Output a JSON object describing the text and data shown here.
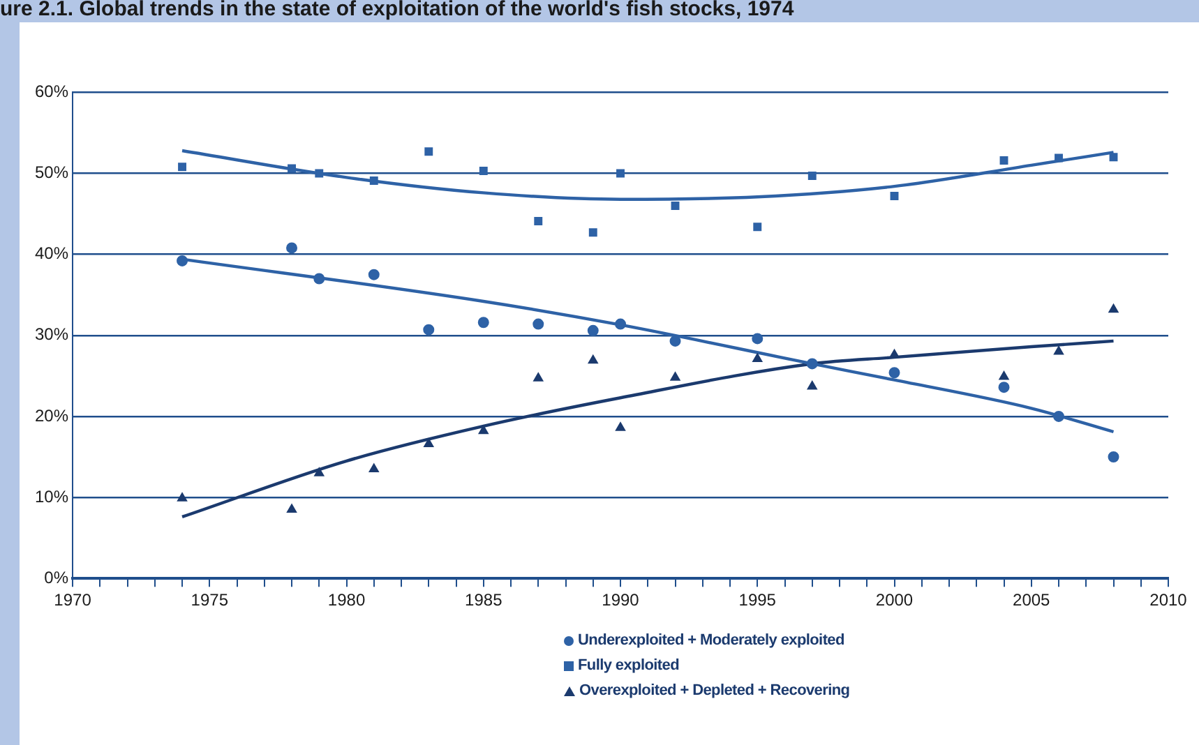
{
  "chart_data": {
    "type": "scatter",
    "title": "ure 2.1. Global trends in the state of exploitation of the world's fish stocks, 1974",
    "x": [
      1974,
      1978,
      1979,
      1981,
      1983,
      1985,
      1987,
      1989,
      1990,
      1992,
      1995,
      1997,
      2000,
      2004,
      2006,
      2008
    ],
    "series": [
      {
        "name": "Underexploited + Moderately exploited",
        "color": "#2e62a6",
        "marker": "circle",
        "values": [
          39.2,
          40.8,
          37,
          37.5,
          30.7,
          31.6,
          31.4,
          30.6,
          31.4,
          29.3,
          29.6,
          26.5,
          25.4,
          23.6,
          20.0,
          15.0
        ]
      },
      {
        "name": "Fully exploited",
        "color": "#2e62a6",
        "marker": "square",
        "values": [
          50.8,
          50.6,
          50.0,
          49.1,
          52.7,
          50.3,
          44.1,
          42.7,
          50.0,
          46.0,
          43.4,
          49.7,
          47.2,
          51.6,
          51.9,
          52.0
        ]
      },
      {
        "name": "Overexploited + Depleted + Recovering",
        "color": "#1b3a6e",
        "marker": "triangle",
        "values": [
          9.9,
          8.5,
          13.0,
          13.5,
          16.6,
          18.2,
          24.7,
          26.9,
          18.6,
          24.8,
          27.1,
          23.7,
          27.6,
          24.9,
          28.0,
          33.2
        ]
      },
      {
        "type": "line",
        "color": "#2e62a6",
        "x": [
          1974,
          1980,
          1985,
          1990,
          1995,
          2000,
          2005,
          2008
        ],
        "values": [
          52.8,
          49.5,
          47.6,
          46.8,
          47.1,
          48.4,
          51.0,
          52.6
        ]
      },
      {
        "type": "line",
        "color": "#2e62a6",
        "x": [
          1974,
          1985,
          1990,
          1997,
          2000,
          2005,
          2008
        ],
        "values": [
          39.4,
          34.2,
          31.3,
          26.5,
          24.5,
          21.0,
          18.1
        ]
      },
      {
        "type": "line",
        "color": "#1b3a6e",
        "x": [
          1974,
          1980,
          1985,
          1990,
          1997,
          2000,
          2005,
          2008
        ],
        "values": [
          7.6,
          14.5,
          18.8,
          22.3,
          26.5,
          27.3,
          28.6,
          29.3
        ]
      }
    ],
    "xlim": [
      1970,
      2010
    ],
    "xticks": [
      1970,
      {
        "value": 1971,
        "label": null
      },
      {
        "value": 1972,
        "label": null
      },
      {
        "value": 1973,
        "label": null
      },
      {
        "value": 1974,
        "label": null
      },
      1975,
      {
        "value": 1976,
        "label": null
      },
      {
        "value": 1977,
        "label": null
      },
      {
        "value": 1978,
        "label": null
      },
      {
        "value": 1979,
        "label": null
      },
      1980,
      {
        "value": 1981,
        "label": null
      },
      {
        "value": 1982,
        "label": null
      },
      {
        "value": 1983,
        "label": null
      },
      {
        "value": 1984,
        "label": null
      },
      1985,
      {
        "value": 1986,
        "label": null
      },
      {
        "value": 1987,
        "label": null
      },
      {
        "value": 1988,
        "label": null
      },
      {
        "value": 1989,
        "label": null
      },
      1990,
      {
        "value": 1991,
        "label": null
      },
      {
        "value": 1992,
        "label": null
      },
      {
        "value": 1993,
        "label": null
      },
      {
        "value": 1994,
        "label": null
      },
      1995,
      {
        "value": 1996,
        "label": null
      },
      {
        "value": 1997,
        "label": null
      },
      {
        "value": 1998,
        "label": null
      },
      {
        "value": 1999,
        "label": null
      },
      2000,
      {
        "value": 2001,
        "label": null
      },
      {
        "value": 2002,
        "label": null
      },
      {
        "value": 2003,
        "label": null
      },
      {
        "value": 2004,
        "label": null
      },
      2005,
      {
        "value": 2006,
        "label": null
      },
      {
        "value": 2007,
        "label": null
      },
      {
        "value": 2008,
        "label": null
      },
      {
        "value": 2009,
        "label": null
      },
      2010
    ],
    "ylim": [
      0,
      60
    ],
    "yticks": [
      {
        "value": 0,
        "label": "0%"
      },
      {
        "value": 10,
        "label": "10%"
      },
      {
        "value": 20,
        "label": "20%"
      },
      {
        "value": 30,
        "label": "30%"
      },
      {
        "value": 40,
        "label": "40%"
      },
      {
        "value": 50,
        "label": "50%"
      },
      {
        "value": 60,
        "label": "60%"
      }
    ],
    "grid": "y",
    "legend": "bottom"
  }
}
